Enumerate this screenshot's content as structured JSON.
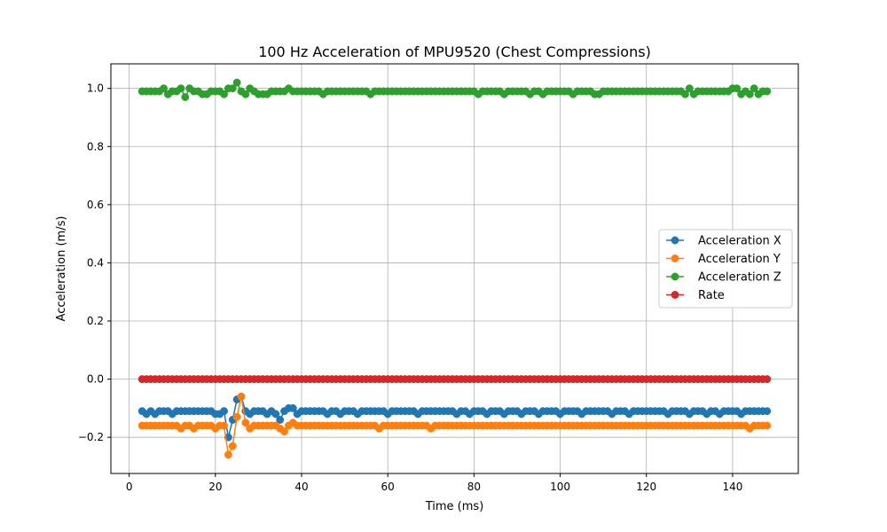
{
  "chart_data": {
    "type": "line",
    "title": "100 Hz Acceleration of MPU9520 (Chest Compressions)",
    "xlabel": "Time (ms)",
    "ylabel": "Acceleration (m/s)",
    "xlim": [
      -4.25,
      155.25
    ],
    "ylim": [
      -0.3245,
      1.0845
    ],
    "xticks": [
      0,
      20,
      40,
      60,
      80,
      100,
      120,
      140
    ],
    "xtick_labels": [
      "0",
      "20",
      "40",
      "60",
      "80",
      "100",
      "120",
      "140"
    ],
    "yticks": [
      -0.2,
      0.0,
      0.2,
      0.4,
      0.6,
      0.8,
      1.0
    ],
    "ytick_labels": [
      "−0.2",
      "0.0",
      "0.2",
      "0.4",
      "0.6",
      "0.8",
      "1.0"
    ],
    "grid": true,
    "legend_position": "center-right",
    "x_start": 3,
    "x_step": 1,
    "series": [
      {
        "name": "Acceleration X",
        "color": "#1f77b4",
        "values": [
          -0.11,
          -0.12,
          -0.11,
          -0.12,
          -0.11,
          -0.11,
          -0.11,
          -0.12,
          -0.11,
          -0.11,
          -0.11,
          -0.11,
          -0.11,
          -0.11,
          -0.11,
          -0.11,
          -0.11,
          -0.12,
          -0.12,
          -0.11,
          -0.2,
          -0.14,
          -0.07,
          -0.06,
          -0.11,
          -0.12,
          -0.11,
          -0.11,
          -0.11,
          -0.12,
          -0.11,
          -0.12,
          -0.14,
          -0.11,
          -0.1,
          -0.1,
          -0.12,
          -0.11,
          -0.11,
          -0.11,
          -0.11,
          -0.11,
          -0.11,
          -0.12,
          -0.11,
          -0.11,
          -0.12,
          -0.11,
          -0.11,
          -0.11,
          -0.12,
          -0.11,
          -0.11,
          -0.11,
          -0.11,
          -0.11,
          -0.11,
          -0.12,
          -0.11,
          -0.11,
          -0.11,
          -0.11,
          -0.11,
          -0.11,
          -0.12,
          -0.11,
          -0.11,
          -0.11,
          -0.11,
          -0.11,
          -0.11,
          -0.11,
          -0.11,
          -0.12,
          -0.11,
          -0.11,
          -0.12,
          -0.11,
          -0.11,
          -0.11,
          -0.12,
          -0.11,
          -0.11,
          -0.11,
          -0.12,
          -0.11,
          -0.11,
          -0.11,
          -0.12,
          -0.11,
          -0.11,
          -0.11,
          -0.12,
          -0.11,
          -0.11,
          -0.11,
          -0.11,
          -0.12,
          -0.11,
          -0.11,
          -0.11,
          -0.11,
          -0.12,
          -0.11,
          -0.11,
          -0.11,
          -0.11,
          -0.11,
          -0.11,
          -0.12,
          -0.11,
          -0.11,
          -0.11,
          -0.12,
          -0.11,
          -0.11,
          -0.11,
          -0.11,
          -0.11,
          -0.11,
          -0.11,
          -0.11,
          -0.12,
          -0.11,
          -0.11,
          -0.11,
          -0.11,
          -0.12,
          -0.11,
          -0.11,
          -0.11,
          -0.12,
          -0.11,
          -0.11,
          -0.12,
          -0.11,
          -0.11,
          -0.11,
          -0.11,
          -0.12,
          -0.11,
          -0.11,
          -0.11,
          -0.11,
          -0.11,
          -0.11
        ]
      },
      {
        "name": "Acceleration Y",
        "color": "#ff7f0e",
        "values": [
          -0.16,
          -0.16,
          -0.16,
          -0.16,
          -0.16,
          -0.16,
          -0.16,
          -0.16,
          -0.16,
          -0.17,
          -0.16,
          -0.16,
          -0.17,
          -0.16,
          -0.16,
          -0.16,
          -0.16,
          -0.17,
          -0.16,
          -0.16,
          -0.26,
          -0.23,
          -0.13,
          -0.06,
          -0.15,
          -0.17,
          -0.16,
          -0.16,
          -0.16,
          -0.16,
          -0.16,
          -0.16,
          -0.17,
          -0.18,
          -0.16,
          -0.15,
          -0.16,
          -0.16,
          -0.16,
          -0.16,
          -0.16,
          -0.16,
          -0.16,
          -0.16,
          -0.16,
          -0.16,
          -0.16,
          -0.16,
          -0.16,
          -0.16,
          -0.16,
          -0.16,
          -0.16,
          -0.16,
          -0.16,
          -0.17,
          -0.16,
          -0.16,
          -0.16,
          -0.16,
          -0.16,
          -0.16,
          -0.16,
          -0.16,
          -0.16,
          -0.16,
          -0.16,
          -0.17,
          -0.16,
          -0.16,
          -0.16,
          -0.16,
          -0.16,
          -0.16,
          -0.16,
          -0.16,
          -0.16,
          -0.16,
          -0.16,
          -0.16,
          -0.16,
          -0.16,
          -0.16,
          -0.16,
          -0.16,
          -0.16,
          -0.16,
          -0.16,
          -0.16,
          -0.16,
          -0.16,
          -0.16,
          -0.16,
          -0.16,
          -0.16,
          -0.16,
          -0.16,
          -0.16,
          -0.16,
          -0.16,
          -0.16,
          -0.16,
          -0.16,
          -0.16,
          -0.16,
          -0.16,
          -0.16,
          -0.16,
          -0.16,
          -0.16,
          -0.16,
          -0.16,
          -0.16,
          -0.16,
          -0.16,
          -0.16,
          -0.16,
          -0.16,
          -0.16,
          -0.16,
          -0.16,
          -0.16,
          -0.16,
          -0.16,
          -0.16,
          -0.16,
          -0.16,
          -0.16,
          -0.16,
          -0.16,
          -0.16,
          -0.16,
          -0.16,
          -0.16,
          -0.16,
          -0.16,
          -0.16,
          -0.16,
          -0.16,
          -0.16,
          -0.16,
          -0.17,
          -0.16,
          -0.16,
          -0.16,
          -0.16
        ]
      },
      {
        "name": "Acceleration Z",
        "color": "#2ca02c",
        "values": [
          0.99,
          0.99,
          0.99,
          0.99,
          0.99,
          1.0,
          0.98,
          0.99,
          0.99,
          1.0,
          0.97,
          1.0,
          0.99,
          0.99,
          0.98,
          0.98,
          0.99,
          0.99,
          0.99,
          0.98,
          1.0,
          1.0,
          1.02,
          0.99,
          0.98,
          1.0,
          0.99,
          0.98,
          0.98,
          0.98,
          0.99,
          0.99,
          0.99,
          0.99,
          1.0,
          0.99,
          0.99,
          0.99,
          0.99,
          0.99,
          0.99,
          0.99,
          0.98,
          0.99,
          0.99,
          0.99,
          0.99,
          0.99,
          0.99,
          0.99,
          0.99,
          0.99,
          0.99,
          0.98,
          0.99,
          0.99,
          0.99,
          0.99,
          0.99,
          0.99,
          0.99,
          0.99,
          0.99,
          0.99,
          0.99,
          0.99,
          0.99,
          0.99,
          0.99,
          0.99,
          0.99,
          0.99,
          0.99,
          0.99,
          0.99,
          0.99,
          0.99,
          0.99,
          0.98,
          0.99,
          0.99,
          0.99,
          0.99,
          0.99,
          0.98,
          0.99,
          0.99,
          0.99,
          0.99,
          0.99,
          0.98,
          0.99,
          0.99,
          0.98,
          0.99,
          0.99,
          0.99,
          0.99,
          0.99,
          0.99,
          0.98,
          0.99,
          0.99,
          0.99,
          0.99,
          0.98,
          0.98,
          0.99,
          0.99,
          0.99,
          0.99,
          0.99,
          0.99,
          0.99,
          0.99,
          0.99,
          0.99,
          0.99,
          0.99,
          0.99,
          0.99,
          0.99,
          0.99,
          0.99,
          0.99,
          0.99,
          0.98,
          1.0,
          0.98,
          0.99,
          0.99,
          0.99,
          0.99,
          0.99,
          0.99,
          0.99,
          0.99,
          1.0,
          1.0,
          0.98,
          0.99,
          0.98,
          1.0,
          0.98,
          0.99,
          0.99
        ]
      },
      {
        "name": "Rate",
        "color": "#d62728",
        "values": [
          0,
          0,
          0,
          0,
          0,
          0,
          0,
          0,
          0,
          0,
          0,
          0,
          0,
          0,
          0,
          0,
          0,
          0,
          0,
          0,
          0,
          0,
          0,
          0,
          0,
          0,
          0,
          0,
          0,
          0,
          0,
          0,
          0,
          0,
          0,
          0,
          0,
          0,
          0,
          0,
          0,
          0,
          0,
          0,
          0,
          0,
          0,
          0,
          0,
          0,
          0,
          0,
          0,
          0,
          0,
          0,
          0,
          0,
          0,
          0,
          0,
          0,
          0,
          0,
          0,
          0,
          0,
          0,
          0,
          0,
          0,
          0,
          0,
          0,
          0,
          0,
          0,
          0,
          0,
          0,
          0,
          0,
          0,
          0,
          0,
          0,
          0,
          0,
          0,
          0,
          0,
          0,
          0,
          0,
          0,
          0,
          0,
          0,
          0,
          0,
          0,
          0,
          0,
          0,
          0,
          0,
          0,
          0,
          0,
          0,
          0,
          0,
          0,
          0,
          0,
          0,
          0,
          0,
          0,
          0,
          0,
          0,
          0,
          0,
          0,
          0,
          0,
          0,
          0,
          0,
          0,
          0,
          0,
          0,
          0,
          0,
          0,
          0,
          0,
          0,
          0,
          0,
          0,
          0,
          0,
          0
        ]
      }
    ]
  }
}
